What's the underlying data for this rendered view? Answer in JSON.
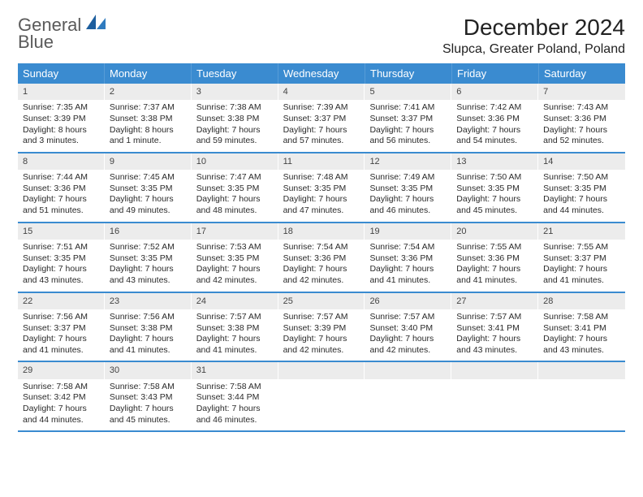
{
  "logo": {
    "text1": "General",
    "text2": "Blue"
  },
  "title": "December 2024",
  "location": "Slupca, Greater Poland, Poland",
  "colors": {
    "header_bg": "#3a8bd0",
    "daynum_bg": "#ececec",
    "row_border": "#3a8bd0",
    "logo_gray": "#5a5a5a",
    "logo_blue": "#2f7bbf"
  },
  "day_headers": [
    "Sunday",
    "Monday",
    "Tuesday",
    "Wednesday",
    "Thursday",
    "Friday",
    "Saturday"
  ],
  "weeks": [
    [
      {
        "n": "1",
        "sr": "Sunrise: 7:35 AM",
        "ss": "Sunset: 3:39 PM",
        "dl": "Daylight: 8 hours and 3 minutes."
      },
      {
        "n": "2",
        "sr": "Sunrise: 7:37 AM",
        "ss": "Sunset: 3:38 PM",
        "dl": "Daylight: 8 hours and 1 minute."
      },
      {
        "n": "3",
        "sr": "Sunrise: 7:38 AM",
        "ss": "Sunset: 3:38 PM",
        "dl": "Daylight: 7 hours and 59 minutes."
      },
      {
        "n": "4",
        "sr": "Sunrise: 7:39 AM",
        "ss": "Sunset: 3:37 PM",
        "dl": "Daylight: 7 hours and 57 minutes."
      },
      {
        "n": "5",
        "sr": "Sunrise: 7:41 AM",
        "ss": "Sunset: 3:37 PM",
        "dl": "Daylight: 7 hours and 56 minutes."
      },
      {
        "n": "6",
        "sr": "Sunrise: 7:42 AM",
        "ss": "Sunset: 3:36 PM",
        "dl": "Daylight: 7 hours and 54 minutes."
      },
      {
        "n": "7",
        "sr": "Sunrise: 7:43 AM",
        "ss": "Sunset: 3:36 PM",
        "dl": "Daylight: 7 hours and 52 minutes."
      }
    ],
    [
      {
        "n": "8",
        "sr": "Sunrise: 7:44 AM",
        "ss": "Sunset: 3:36 PM",
        "dl": "Daylight: 7 hours and 51 minutes."
      },
      {
        "n": "9",
        "sr": "Sunrise: 7:45 AM",
        "ss": "Sunset: 3:35 PM",
        "dl": "Daylight: 7 hours and 49 minutes."
      },
      {
        "n": "10",
        "sr": "Sunrise: 7:47 AM",
        "ss": "Sunset: 3:35 PM",
        "dl": "Daylight: 7 hours and 48 minutes."
      },
      {
        "n": "11",
        "sr": "Sunrise: 7:48 AM",
        "ss": "Sunset: 3:35 PM",
        "dl": "Daylight: 7 hours and 47 minutes."
      },
      {
        "n": "12",
        "sr": "Sunrise: 7:49 AM",
        "ss": "Sunset: 3:35 PM",
        "dl": "Daylight: 7 hours and 46 minutes."
      },
      {
        "n": "13",
        "sr": "Sunrise: 7:50 AM",
        "ss": "Sunset: 3:35 PM",
        "dl": "Daylight: 7 hours and 45 minutes."
      },
      {
        "n": "14",
        "sr": "Sunrise: 7:50 AM",
        "ss": "Sunset: 3:35 PM",
        "dl": "Daylight: 7 hours and 44 minutes."
      }
    ],
    [
      {
        "n": "15",
        "sr": "Sunrise: 7:51 AM",
        "ss": "Sunset: 3:35 PM",
        "dl": "Daylight: 7 hours and 43 minutes."
      },
      {
        "n": "16",
        "sr": "Sunrise: 7:52 AM",
        "ss": "Sunset: 3:35 PM",
        "dl": "Daylight: 7 hours and 43 minutes."
      },
      {
        "n": "17",
        "sr": "Sunrise: 7:53 AM",
        "ss": "Sunset: 3:35 PM",
        "dl": "Daylight: 7 hours and 42 minutes."
      },
      {
        "n": "18",
        "sr": "Sunrise: 7:54 AM",
        "ss": "Sunset: 3:36 PM",
        "dl": "Daylight: 7 hours and 42 minutes."
      },
      {
        "n": "19",
        "sr": "Sunrise: 7:54 AM",
        "ss": "Sunset: 3:36 PM",
        "dl": "Daylight: 7 hours and 41 minutes."
      },
      {
        "n": "20",
        "sr": "Sunrise: 7:55 AM",
        "ss": "Sunset: 3:36 PM",
        "dl": "Daylight: 7 hours and 41 minutes."
      },
      {
        "n": "21",
        "sr": "Sunrise: 7:55 AM",
        "ss": "Sunset: 3:37 PM",
        "dl": "Daylight: 7 hours and 41 minutes."
      }
    ],
    [
      {
        "n": "22",
        "sr": "Sunrise: 7:56 AM",
        "ss": "Sunset: 3:37 PM",
        "dl": "Daylight: 7 hours and 41 minutes."
      },
      {
        "n": "23",
        "sr": "Sunrise: 7:56 AM",
        "ss": "Sunset: 3:38 PM",
        "dl": "Daylight: 7 hours and 41 minutes."
      },
      {
        "n": "24",
        "sr": "Sunrise: 7:57 AM",
        "ss": "Sunset: 3:38 PM",
        "dl": "Daylight: 7 hours and 41 minutes."
      },
      {
        "n": "25",
        "sr": "Sunrise: 7:57 AM",
        "ss": "Sunset: 3:39 PM",
        "dl": "Daylight: 7 hours and 42 minutes."
      },
      {
        "n": "26",
        "sr": "Sunrise: 7:57 AM",
        "ss": "Sunset: 3:40 PM",
        "dl": "Daylight: 7 hours and 42 minutes."
      },
      {
        "n": "27",
        "sr": "Sunrise: 7:57 AM",
        "ss": "Sunset: 3:41 PM",
        "dl": "Daylight: 7 hours and 43 minutes."
      },
      {
        "n": "28",
        "sr": "Sunrise: 7:58 AM",
        "ss": "Sunset: 3:41 PM",
        "dl": "Daylight: 7 hours and 43 minutes."
      }
    ],
    [
      {
        "n": "29",
        "sr": "Sunrise: 7:58 AM",
        "ss": "Sunset: 3:42 PM",
        "dl": "Daylight: 7 hours and 44 minutes."
      },
      {
        "n": "30",
        "sr": "Sunrise: 7:58 AM",
        "ss": "Sunset: 3:43 PM",
        "dl": "Daylight: 7 hours and 45 minutes."
      },
      {
        "n": "31",
        "sr": "Sunrise: 7:58 AM",
        "ss": "Sunset: 3:44 PM",
        "dl": "Daylight: 7 hours and 46 minutes."
      },
      {
        "empty": true
      },
      {
        "empty": true
      },
      {
        "empty": true
      },
      {
        "empty": true
      }
    ]
  ]
}
